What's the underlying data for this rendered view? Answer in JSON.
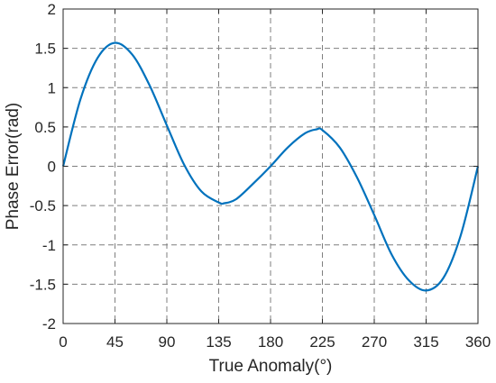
{
  "chart_data": {
    "type": "line",
    "title": "",
    "xlabel": "True Anomaly(°)",
    "ylabel": "Phase Error(rad)",
    "xlim": [
      0,
      360
    ],
    "ylim": [
      -2,
      2
    ],
    "x_ticks": [
      0,
      45,
      90,
      135,
      180,
      225,
      270,
      315,
      360
    ],
    "y_ticks": [
      2,
      1.5,
      1,
      0.5,
      0,
      -0.5,
      -1,
      -1.5,
      -2
    ],
    "x_tick_labels": [
      "0",
      "45",
      "90",
      "135",
      "180",
      "225",
      "270",
      "315",
      "360"
    ],
    "y_tick_labels": [
      "2",
      "1.5",
      "1",
      "0.5",
      "0",
      "-0.5",
      "-1",
      "-1.5",
      "-2"
    ],
    "grid": true,
    "grid_style": "dashed",
    "series": [
      {
        "color": "#0072bd",
        "x": [
          0,
          15,
          30,
          45,
          60,
          75,
          90,
          105,
          120,
          135,
          140,
          150,
          165,
          180,
          195,
          210,
          220,
          225,
          240,
          255,
          270,
          285,
          300,
          315,
          330,
          345,
          360
        ],
        "values": [
          0,
          0.85,
          1.38,
          1.57,
          1.42,
          1.03,
          0.52,
          0.02,
          -0.32,
          -0.46,
          -0.47,
          -0.42,
          -0.22,
          0.0,
          0.24,
          0.42,
          0.47,
          0.46,
          0.24,
          -0.14,
          -0.62,
          -1.12,
          -1.45,
          -1.58,
          -1.42,
          -0.88,
          0.0
        ]
      }
    ]
  }
}
